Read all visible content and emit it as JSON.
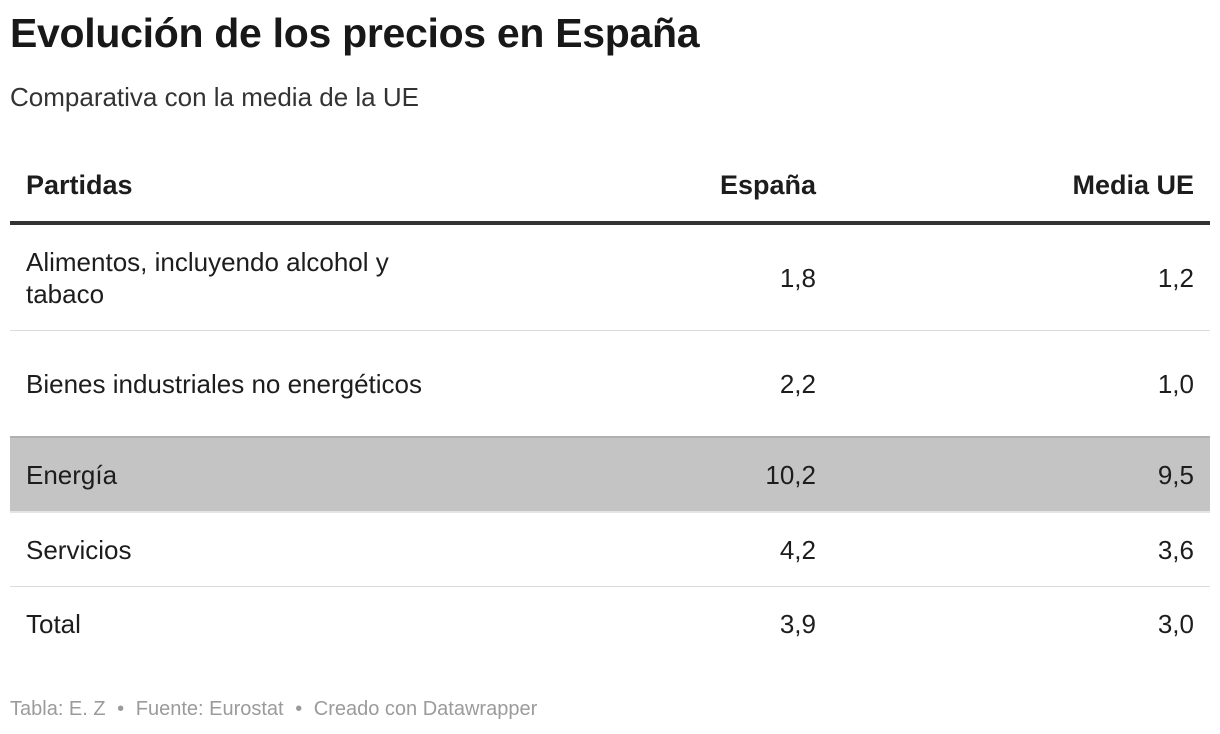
{
  "title": "Evolución de los precios en España",
  "subtitle": "Comparativa con la media de la UE",
  "chart_data": {
    "type": "table",
    "title": "Evolución de los precios en España",
    "subtitle": "Comparativa con la media de la UE",
    "columns": [
      "Partidas",
      "España",
      "Media UE"
    ],
    "rows": [
      {
        "partida": "Alimentos, incluyendo alcohol y tabaco",
        "espana": "1,8",
        "media_ue": "1,2"
      },
      {
        "partida": "Bienes industriales no energéticos",
        "espana": "2,2",
        "media_ue": "1,0"
      },
      {
        "partida": "Energía",
        "espana": "10,2",
        "media_ue": "9,5"
      },
      {
        "partida": "Servicios",
        "espana": "4,2",
        "media_ue": "3,6"
      },
      {
        "partida": "Total",
        "espana": "3,9",
        "media_ue": "3,0"
      }
    ],
    "highlighted_row": "Energía",
    "highlight_color": "#c4c4c4"
  },
  "footer": {
    "table_credit": "Tabla: E. Z",
    "source": "Fuente: Eurostat",
    "tool": "Creado con Datawrapper",
    "separator": "•"
  }
}
